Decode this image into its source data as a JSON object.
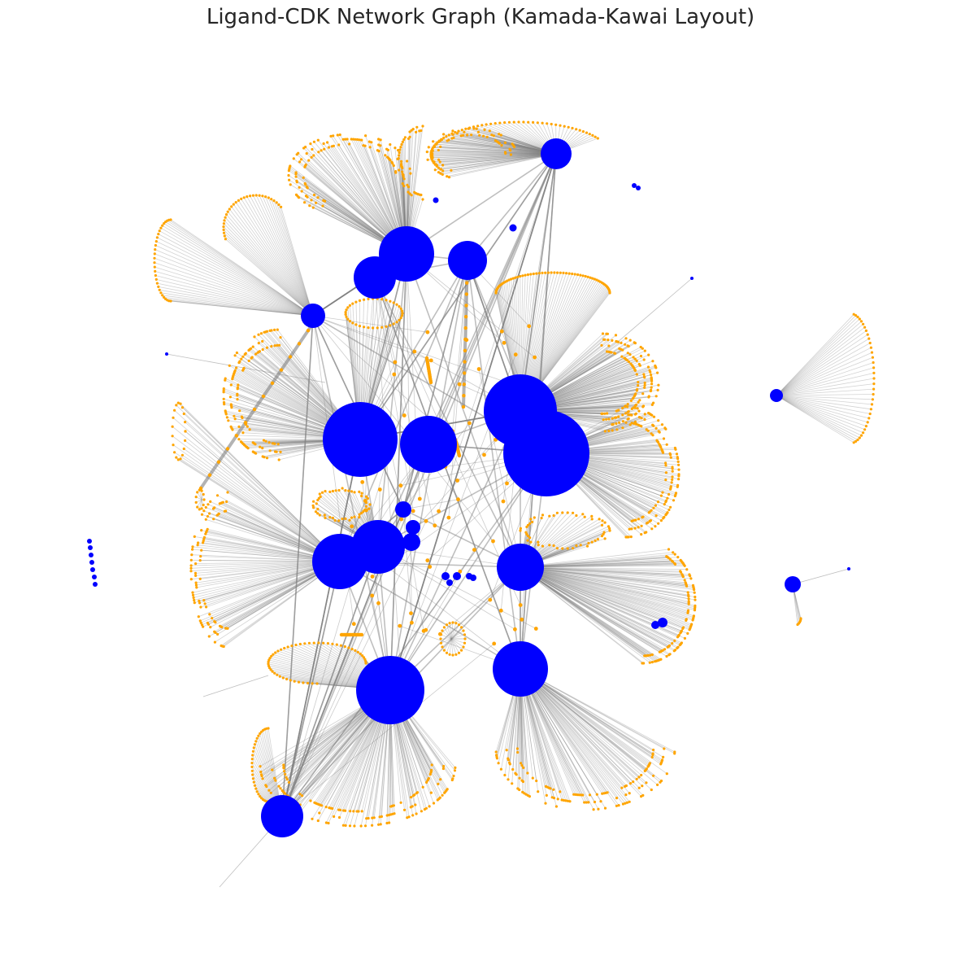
{
  "title": "Ligand-CDK Network Graph (Kamada-Kawai Layout)",
  "colors": {
    "cdk_node": "#0000ff",
    "ligand_node": "#ffa500",
    "edge": "#808080",
    "background": "#ffffff"
  },
  "layout_algorithm": "Kamada-Kawai",
  "legend": null
}
